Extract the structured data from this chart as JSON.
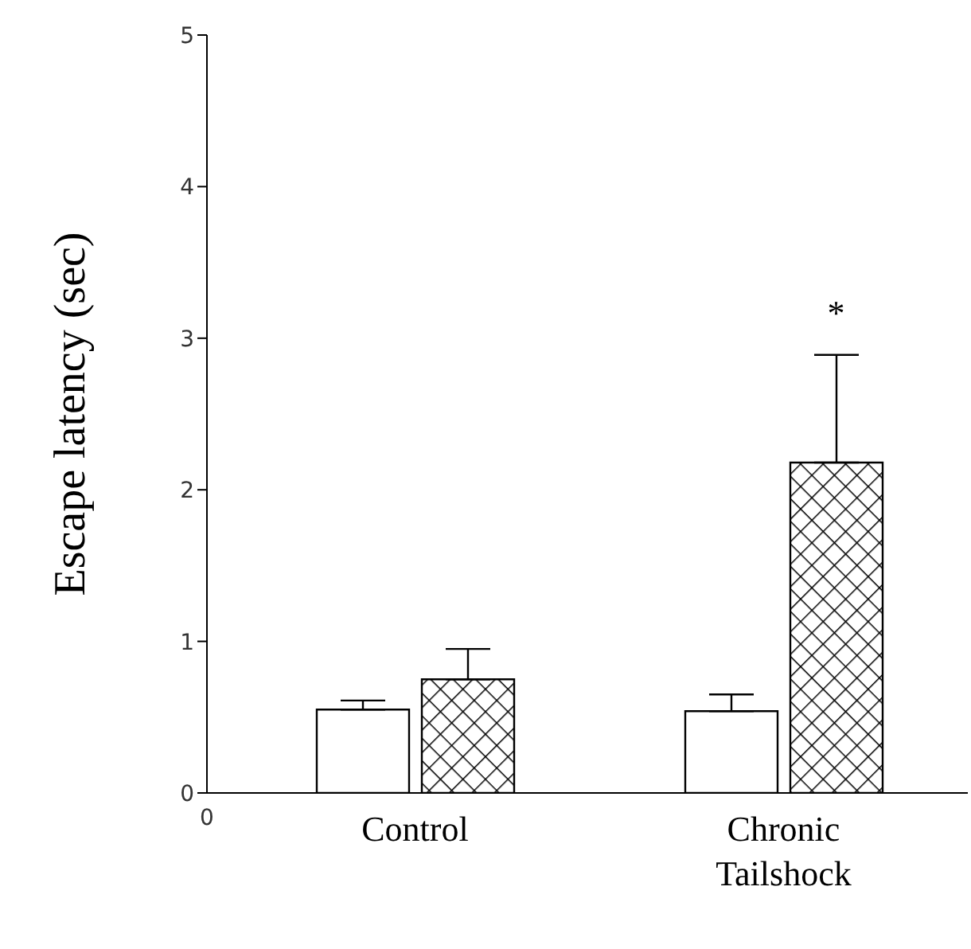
{
  "chart_data": {
    "type": "bar",
    "ylabel": "Escape latency (sec)",
    "categories": [
      "Control",
      "Chronic Tailshock"
    ],
    "series": [
      {
        "color": "#ffffff",
        "values": [
          0.55,
          0.54
        ],
        "errors": [
          [
            0.55,
            0.61
          ],
          [
            0.54,
            0.65
          ]
        ]
      },
      {
        "color": "#000000",
        "values": [
          0.75,
          2.18
        ],
        "errors": [
          [
            0.75,
            0.95
          ],
          [
            2.18,
            2.89
          ]
        ]
      }
    ],
    "ylim": [
      0,
      5
    ],
    "yticks": [
      0,
      1,
      2,
      3,
      4,
      5
    ],
    "annotations": [
      "*",
      "0"
    ]
  }
}
